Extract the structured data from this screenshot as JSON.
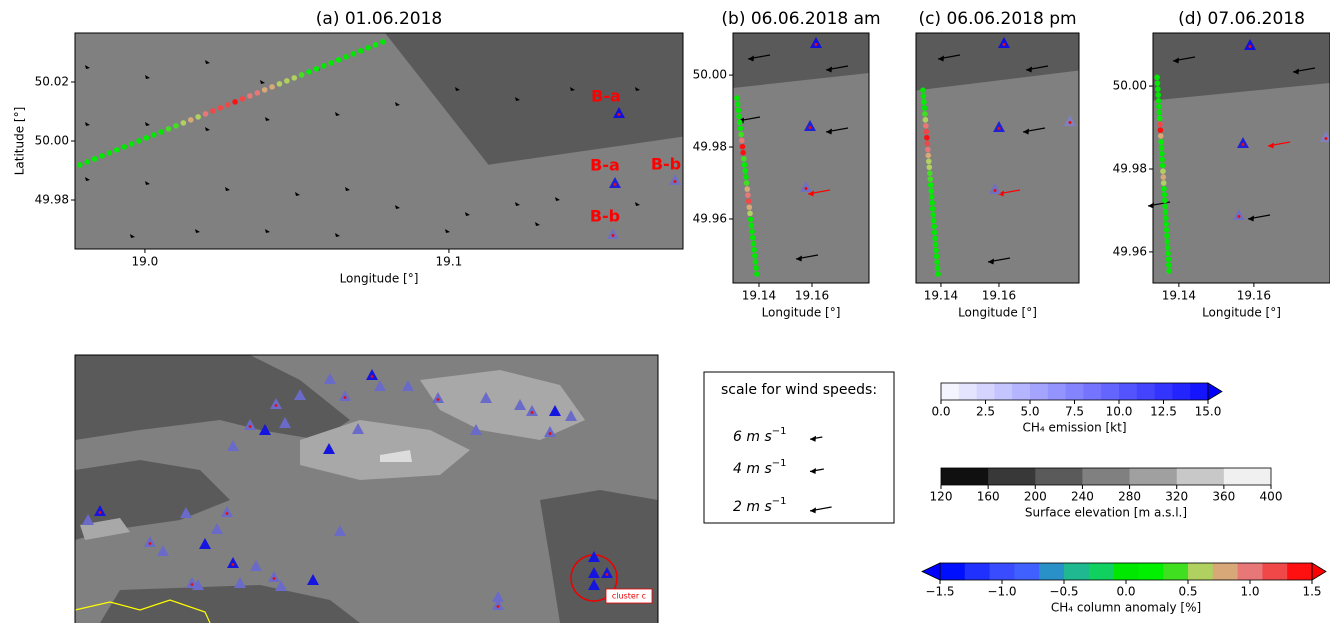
{
  "panels": [
    {
      "title": "(a) 01.06.2018",
      "xlabel": "Longitude [°]",
      "ylabel": "Latitude [°]",
      "xlim": [
        18.977,
        19.177
      ],
      "ylim": [
        49.9634,
        50.0366
      ],
      "xticks": [
        {
          "value": 19.0,
          "label": "19.0"
        },
        19.1
      ],
      "yticks": [
        49.98,
        {
          "value": 50.0,
          "label": "50.00"
        },
        50.02
      ],
      "annotations": [
        "B-a",
        "B-a",
        "B-b",
        "B-b"
      ],
      "transect": {
        "start": [
          18.9786,
          49.9919
        ],
        "end": [
          19.0783,
          50.0336
        ],
        "anomaly": [
          0.0,
          0.0,
          0.1,
          0.0,
          0.0,
          0.1,
          0.0,
          0.0,
          0.0,
          0.1,
          0.0,
          0.0,
          0.3,
          0.4,
          0.6,
          0.9,
          0.5,
          1.0,
          1.1,
          1.2,
          1.3,
          1.5,
          1.1,
          1.0,
          1.0,
          0.9,
          0.8,
          0.6,
          0.6,
          0.5,
          0.4,
          0.2,
          0.1,
          0.0,
          0.0,
          0.1,
          0.0,
          0.0,
          0.0,
          0.0,
          0.1,
          0.0
        ]
      }
    },
    {
      "title": "(b) 06.06.2018 am",
      "xlabel": "Longitude [°]",
      "xlim": [
        19.1302,
        19.1815
      ],
      "ylim": [
        49.9422,
        50.0117
      ],
      "xticks": [
        19.14,
        19.16
      ],
      "yticks": [
        49.96,
        49.98,
        {
          "value": 50.0,
          "label": "50.00"
        }
      ],
      "transect": {
        "start": [
          19.1317,
          49.9936
        ],
        "end": [
          19.1392,
          49.9447
        ],
        "anomaly": [
          0.0,
          0.0,
          0.0,
          0.0,
          0.1,
          0.0,
          0.3,
          1.0,
          1.4,
          1.5,
          0.4,
          0.2,
          0.1,
          0.0,
          0.3,
          0.8,
          1.0,
          1.1,
          0.9,
          0.5,
          0.0,
          0.0,
          0.0,
          0.0,
          0.0,
          0.0,
          0.0,
          0.0,
          0.0,
          0.0
        ]
      }
    },
    {
      "title": "(c) 06.06.2018 pm",
      "xlabel": "Longitude [°]",
      "xlim": [
        19.1314,
        19.1876
      ],
      "ylim": [
        49.9422,
        50.0117
      ],
      "xticks": [
        19.14,
        19.16
      ],
      "transect": {
        "start": [
          19.1338,
          49.9958
        ],
        "end": [
          19.139,
          49.9447
        ],
        "anomaly": [
          0.0,
          0.0,
          0.1,
          0.0,
          0.3,
          0.5,
          1.0,
          1.2,
          1.4,
          1.3,
          1.0,
          0.8,
          0.6,
          0.5,
          0.4,
          0.3,
          0.2,
          0.1,
          0.0,
          0.0,
          0.0,
          0.0,
          0.0,
          0.0,
          0.0,
          0.0,
          0.0,
          0.0,
          0.0,
          0.0,
          0.0,
          0.0
        ]
      }
    },
    {
      "title": "(d) 07.06.2018",
      "xlabel": "Longitude [°]",
      "xlim": [
        19.1331,
        19.1803
      ],
      "ylim": [
        49.9525,
        50.0128
      ],
      "xticks": [
        19.14,
        19.16
      ],
      "yticks": [
        49.96,
        49.98,
        {
          "value": 50.0,
          "label": "50.00"
        }
      ],
      "transect": {
        "start": [
          19.1342,
          50.0021
        ],
        "end": [
          19.1374,
          49.9554
        ],
        "anomaly": [
          0.0,
          0.0,
          0.0,
          0.0,
          0.0,
          0.0,
          0.0,
          0.2,
          1.2,
          1.5,
          0.8,
          0.1,
          0.0,
          0.0,
          0.0,
          0.0,
          0.6,
          0.9,
          0.5,
          0.1,
          0.0,
          0.0,
          0.0,
          0.0,
          0.0,
          0.0,
          0.0,
          0.0,
          0.0,
          0.0,
          0.0,
          0.0,
          0.0,
          0.0
        ]
      }
    }
  ],
  "overview": {
    "annotation": "cluster c"
  },
  "wind_scale": {
    "title": "scale for wind speeds:",
    "entries": [
      {
        "text": "6 m s",
        "sup": "−1"
      },
      {
        "text": "4 m s",
        "sup": "−1"
      },
      {
        "text": "2 m s",
        "sup": "−1"
      }
    ]
  },
  "colorbars": [
    {
      "label": "CH₄ emission [kt]",
      "lim": [
        0,
        15
      ],
      "ticks": [
        {
          "value": 0,
          "label": "0.0"
        },
        2.5,
        {
          "value": 5,
          "label": "5.0"
        },
        7.5,
        {
          "value": 10,
          "label": "10.0"
        },
        12.5,
        {
          "value": 15,
          "label": "15.0"
        }
      ],
      "colors": [
        "#f4f4ff",
        "#e4e4ff",
        "#d4d4ff",
        "#c4c4ff",
        "#b4b4ff",
        "#a4a4ff",
        "#9494ff",
        "#8484ff",
        "#7474ff",
        "#6464ff",
        "#5454ff",
        "#4444ff",
        "#3434ff",
        "#2424ff",
        "#1414ff"
      ],
      "extend_colors": [
        null,
        "#0000ff"
      ]
    },
    {
      "label": "Surface elevation [m a.s.l.]",
      "lim": [
        120,
        400
      ],
      "ticks": [
        120,
        160,
        200,
        240,
        280,
        320,
        360,
        400
      ],
      "colors": [
        "#101010",
        "#383838",
        "#5a5a5a",
        "#808080",
        "#a0a0a0",
        "#c8c8c8",
        "#f0f0f0"
      ],
      "extend_colors": [
        null,
        null
      ]
    },
    {
      "label": "CH₄ column anomaly [%]",
      "lim": [
        -1.5,
        1.5
      ],
      "ticks": [
        {
          "value": -1.5,
          "label": "−1.5"
        },
        {
          "value": -1.0,
          "label": "−1.0"
        },
        {
          "value": -0.5,
          "label": "−0.5"
        },
        {
          "value": 0,
          "label": "0.0"
        },
        0.5,
        {
          "value": 1.0,
          "label": "1.0"
        },
        1.5
      ],
      "colors": [
        "#0010ff",
        "#2030ff",
        "#3a4cff",
        "#4060ff",
        "#2a90c8",
        "#20b890",
        "#10d060",
        "#00e800",
        "#00f000",
        "#40e020",
        "#b0d060",
        "#d8a878",
        "#e87878",
        "#f04848",
        "#ff1010"
      ],
      "extend_colors": [
        "#0000ff",
        "#ff0000"
      ]
    }
  ]
}
